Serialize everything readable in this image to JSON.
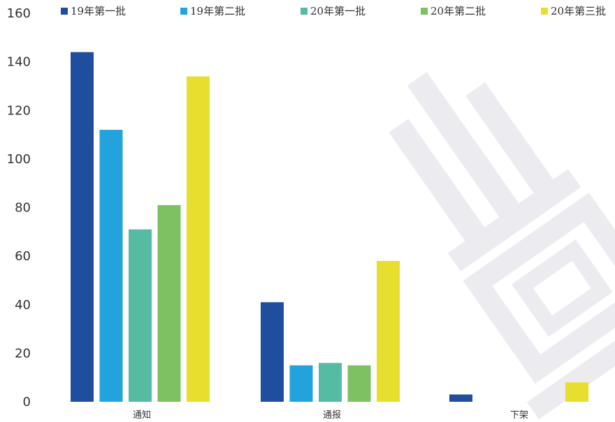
{
  "chart_data": {
    "type": "bar",
    "title": "",
    "xlabel": "",
    "ylabel": "",
    "ylim": [
      0,
      160
    ],
    "yticks": [
      0,
      20,
      40,
      60,
      80,
      100,
      120,
      140,
      160
    ],
    "grid": false,
    "legend_position": "top",
    "categories": [
      "通知",
      "通报",
      "下架"
    ],
    "series": [
      {
        "name": "19年第一批",
        "color": "#1F4E9E",
        "values": [
          144,
          41,
          3
        ]
      },
      {
        "name": "19年第二批",
        "color": "#23A3DD",
        "values": [
          112,
          15,
          0
        ]
      },
      {
        "name": "20年第一批",
        "color": "#55BBA3",
        "values": [
          71,
          16,
          0
        ]
      },
      {
        "name": "20年第二批",
        "color": "#7DC163",
        "values": [
          81,
          15,
          0
        ]
      },
      {
        "name": "20年第三批",
        "color": "#E8DE2E",
        "values": [
          134,
          58,
          8
        ]
      }
    ]
  }
}
